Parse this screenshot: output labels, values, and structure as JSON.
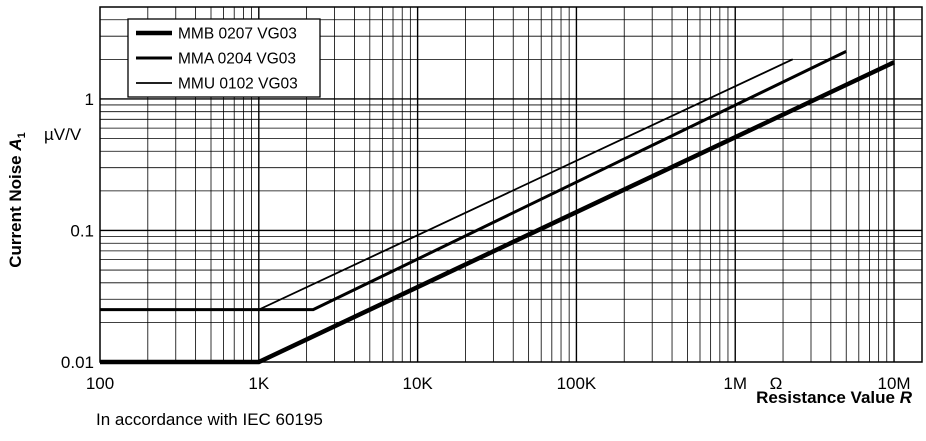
{
  "chart_data": {
    "type": "line",
    "title": "",
    "xlabel": "Resistance Value",
    "xlabel_symbol": "R",
    "ylabel": "Current Noise",
    "ylabel_symbol": "A",
    "ylabel_subscript": "1",
    "y_unit": "µV/V",
    "x_unit_symbol": "Ω",
    "x_scale": "log",
    "y_scale": "log",
    "xlim": [
      100,
      15000000
    ],
    "ylim": [
      0.01,
      5
    ],
    "grid": true,
    "legend_position": "top-left",
    "x_tick_labels": [
      {
        "value": 100,
        "label": "100"
      },
      {
        "value": 1000,
        "label": "1K"
      },
      {
        "value": 10000,
        "label": "10K"
      },
      {
        "value": 100000,
        "label": "100K"
      },
      {
        "value": 1000000,
        "label": "1M"
      },
      {
        "value": 10000000,
        "label": "10M"
      }
    ],
    "y_tick_labels": [
      {
        "value": 0.01,
        "label": "0.01"
      },
      {
        "value": 0.1,
        "label": "0.1"
      },
      {
        "value": 1,
        "label": "1"
      }
    ],
    "series": [
      {
        "name": "MMB 0207 VG03",
        "points": [
          [
            100,
            0.01
          ],
          [
            1000,
            0.01
          ],
          [
            10000000,
            1.9
          ]
        ],
        "style": "thick"
      },
      {
        "name": "MMA 0204 VG03",
        "points": [
          [
            100,
            0.025
          ],
          [
            2200,
            0.025
          ],
          [
            5000000,
            2.3
          ]
        ],
        "style": "medium"
      },
      {
        "name": "MMU 0102 VG03",
        "points": [
          [
            100,
            0.025
          ],
          [
            1000,
            0.025
          ],
          [
            2300000,
            2.0
          ]
        ],
        "style": "thin"
      }
    ]
  },
  "footnote": "In accordance with IEC 60195"
}
